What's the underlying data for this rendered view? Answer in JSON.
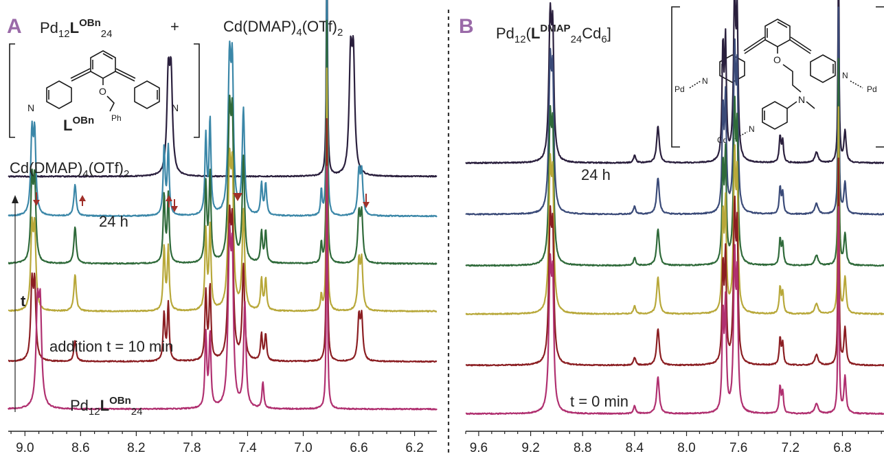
{
  "panels": {
    "A": {
      "letter": "A",
      "title_prefix": "Pd",
      "title_sub1": "12",
      "title_L": "L",
      "title_sup": "OBn",
      "title_sub2": "24",
      "plus": "+",
      "reagent_prefix": "Cd(DMAP)",
      "reagent_sub1": "4",
      "reagent_mid": "(OTf)",
      "reagent_sub2": "2",
      "ligand_L": "L",
      "ligand_sup": "OBn",
      "atoms": {
        "N_left": "N",
        "N_right": "N",
        "O": "O",
        "Ph": "Ph"
      },
      "axis_arrow_label": "t",
      "trace_labels": {
        "cd_prefix": "Cd(DMAP)",
        "cd_sub1": "4",
        "cd_mid": "(OTf)",
        "cd_sub2": "2",
        "time_24h": "24 h",
        "addition": "addition t = 10 min",
        "cage_prefix": "Pd",
        "cage_sub1": "12",
        "cage_L": "L",
        "cage_sup": "OBn",
        "cage_sub2": "24"
      }
    },
    "B": {
      "letter": "B",
      "title_prefix": "Pd",
      "title_sub1": "12",
      "title_open": "(",
      "title_L": "L",
      "title_sup": "DMAP",
      "title_sub2": "24",
      "title_cd": "Cd",
      "title_sub3": "6",
      "title_close": "]",
      "atoms": {
        "Pd_left": "Pd",
        "N_left": "N",
        "Pd_right": "Pd",
        "N_right": "N",
        "O": "O",
        "N_amine": "N",
        "Cd": "Cd",
        "N_bottom": "N"
      },
      "trace_labels": {
        "time_24h": "24 h",
        "time_0": "t = 0 min"
      }
    }
  },
  "colors": {
    "dark": "#2a1f3d",
    "blue": "#3b87a8",
    "navy": "#3a4a78",
    "green": "#2f6a3a",
    "olive": "#b8a83a",
    "red": "#8b1e22",
    "magenta": "#b03070",
    "panel_letter": "#9a6aa8",
    "arrow": "#a0302a"
  },
  "chart_data": [
    {
      "type": "line",
      "panel": "A",
      "xlabel": "",
      "ylabel": "",
      "xlim": [
        9.12,
        6.04
      ],
      "x_ticks": [
        9.0,
        8.6,
        8.2,
        7.8,
        7.4,
        7.0,
        6.6,
        6.2
      ],
      "x_tick_labels": [
        "9.0",
        "8.6",
        "8.2",
        "7.8",
        "7.4",
        "7.0",
        "6.6",
        "6.2"
      ],
      "series": [
        {
          "color": "#2a1f3d",
          "baseline": 0.93,
          "peaks": [
            [
              7.97,
              0.36,
              0.012
            ],
            [
              7.95,
              0.36,
              0.012
            ],
            [
              6.66,
              0.42,
              0.012
            ],
            [
              6.64,
              0.42,
              0.012
            ],
            [
              6.83,
              0.94,
              0.005
            ]
          ]
        },
        {
          "color": "#3b87a8",
          "baseline": 0.78,
          "peaks": [
            [
              8.95,
              0.3,
              0.01
            ],
            [
              8.93,
              0.3,
              0.01
            ],
            [
              8.64,
              0.12,
              0.01
            ],
            [
              8.0,
              0.26,
              0.008
            ],
            [
              7.97,
              0.26,
              0.008
            ],
            [
              7.7,
              0.3,
              0.008
            ],
            [
              7.67,
              0.36,
              0.008
            ],
            [
              7.53,
              0.56,
              0.012
            ],
            [
              7.51,
              0.5,
              0.01
            ],
            [
              7.43,
              0.4,
              0.01
            ],
            [
              7.3,
              0.12,
              0.008
            ],
            [
              7.27,
              0.12,
              0.008
            ],
            [
              6.87,
              0.1,
              0.006
            ],
            [
              6.83,
              0.94,
              0.005
            ],
            [
              6.6,
              0.16,
              0.01
            ],
            [
              6.58,
              0.16,
              0.01
            ]
          ]
        },
        {
          "color": "#2f6a3a",
          "baseline": 0.6,
          "peaks": [
            [
              8.95,
              0.3,
              0.01
            ],
            [
              8.93,
              0.3,
              0.01
            ],
            [
              8.64,
              0.14,
              0.01
            ],
            [
              8.0,
              0.26,
              0.008
            ],
            [
              7.97,
              0.26,
              0.008
            ],
            [
              7.7,
              0.3,
              0.008
            ],
            [
              7.67,
              0.34,
              0.008
            ],
            [
              7.53,
              0.54,
              0.012
            ],
            [
              7.51,
              0.48,
              0.01
            ],
            [
              7.43,
              0.4,
              0.01
            ],
            [
              7.3,
              0.12,
              0.008
            ],
            [
              7.27,
              0.12,
              0.008
            ],
            [
              6.87,
              0.08,
              0.006
            ],
            [
              6.83,
              0.94,
              0.005
            ],
            [
              6.6,
              0.18,
              0.01
            ],
            [
              6.58,
              0.18,
              0.01
            ]
          ]
        },
        {
          "color": "#b8a83a",
          "baseline": 0.42,
          "peaks": [
            [
              8.95,
              0.3,
              0.01
            ],
            [
              8.93,
              0.3,
              0.01
            ],
            [
              8.64,
              0.14,
              0.01
            ],
            [
              8.0,
              0.24,
              0.008
            ],
            [
              7.97,
              0.24,
              0.008
            ],
            [
              7.7,
              0.3,
              0.008
            ],
            [
              7.67,
              0.32,
              0.008
            ],
            [
              7.53,
              0.52,
              0.012
            ],
            [
              7.51,
              0.46,
              0.01
            ],
            [
              7.43,
              0.38,
              0.01
            ],
            [
              7.3,
              0.12,
              0.008
            ],
            [
              7.27,
              0.12,
              0.008
            ],
            [
              6.87,
              0.06,
              0.006
            ],
            [
              6.83,
              0.94,
              0.005
            ],
            [
              6.6,
              0.18,
              0.01
            ],
            [
              6.58,
              0.18,
              0.01
            ]
          ]
        },
        {
          "color": "#8b1e22",
          "baseline": 0.23,
          "peaks": [
            [
              8.95,
              0.28,
              0.01
            ],
            [
              8.93,
              0.28,
              0.01
            ],
            [
              8.64,
              0.08,
              0.01
            ],
            [
              8.0,
              0.18,
              0.008
            ],
            [
              7.97,
              0.22,
              0.008
            ],
            [
              7.7,
              0.26,
              0.008
            ],
            [
              7.67,
              0.28,
              0.008
            ],
            [
              7.53,
              0.5,
              0.012
            ],
            [
              7.51,
              0.44,
              0.01
            ],
            [
              7.43,
              0.36,
              0.01
            ],
            [
              7.3,
              0.1,
              0.008
            ],
            [
              7.27,
              0.1,
              0.008
            ],
            [
              6.83,
              0.94,
              0.005
            ],
            [
              6.6,
              0.16,
              0.01
            ],
            [
              6.58,
              0.16,
              0.01
            ]
          ]
        },
        {
          "color": "#b03070",
          "baseline": 0.05,
          "peaks": [
            [
              8.91,
              0.36,
              0.012
            ],
            [
              8.89,
              0.36,
              0.012
            ],
            [
              7.7,
              0.28,
              0.008
            ],
            [
              7.67,
              0.28,
              0.008
            ],
            [
              7.53,
              0.6,
              0.012
            ],
            [
              7.51,
              0.5,
              0.01
            ],
            [
              7.42,
              0.4,
              0.01
            ],
            [
              7.29,
              0.1,
              0.008
            ],
            [
              6.83,
              0.94,
              0.005
            ]
          ]
        }
      ]
    },
    {
      "type": "line",
      "panel": "B",
      "xlabel": "",
      "ylabel": "",
      "xlim": [
        9.7,
        6.48
      ],
      "x_ticks": [
        9.6,
        9.2,
        8.8,
        8.4,
        8.0,
        7.6,
        7.2,
        6.8
      ],
      "x_tick_labels": [
        "9.6",
        "9.2",
        "8.8",
        "8.4",
        "8.0",
        "7.6",
        "7.2",
        "6.8"
      ],
      "series": [
        {
          "color": "#2a1f3d",
          "baseline": 0.91,
          "peaks": [
            [
              9.05,
              0.52,
              0.012
            ],
            [
              9.03,
              0.44,
              0.01
            ],
            [
              8.4,
              0.03,
              0.01
            ],
            [
              8.22,
              0.14,
              0.012
            ],
            [
              7.72,
              0.42,
              0.008
            ],
            [
              7.7,
              0.44,
              0.008
            ],
            [
              7.63,
              0.62,
              0.01
            ],
            [
              7.61,
              0.5,
              0.008
            ],
            [
              7.28,
              0.1,
              0.008
            ],
            [
              7.26,
              0.08,
              0.008
            ],
            [
              7.0,
              0.04,
              0.015
            ],
            [
              6.83,
              0.8,
              0.005
            ],
            [
              6.78,
              0.12,
              0.01
            ]
          ]
        },
        {
          "color": "#3a4a78",
          "baseline": 0.73,
          "peaks": [
            [
              9.05,
              0.54,
              0.012
            ],
            [
              9.03,
              0.46,
              0.01
            ],
            [
              8.4,
              0.03,
              0.01
            ],
            [
              8.22,
              0.14,
              0.012
            ],
            [
              7.72,
              0.38,
              0.008
            ],
            [
              7.7,
              0.42,
              0.008
            ],
            [
              7.63,
              0.6,
              0.01
            ],
            [
              7.61,
              0.48,
              0.008
            ],
            [
              7.28,
              0.1,
              0.008
            ],
            [
              7.26,
              0.08,
              0.008
            ],
            [
              7.0,
              0.04,
              0.015
            ],
            [
              6.83,
              0.8,
              0.005
            ],
            [
              6.78,
              0.12,
              0.01
            ]
          ]
        },
        {
          "color": "#2f6a3a",
          "baseline": 0.55,
          "peaks": [
            [
              9.05,
              0.52,
              0.012
            ],
            [
              9.03,
              0.44,
              0.01
            ],
            [
              8.4,
              0.03,
              0.01
            ],
            [
              8.22,
              0.14,
              0.012
            ],
            [
              7.72,
              0.36,
              0.008
            ],
            [
              7.7,
              0.4,
              0.008
            ],
            [
              7.63,
              0.58,
              0.01
            ],
            [
              7.61,
              0.46,
              0.008
            ],
            [
              7.28,
              0.1,
              0.008
            ],
            [
              7.26,
              0.08,
              0.008
            ],
            [
              7.0,
              0.04,
              0.015
            ],
            [
              6.83,
              0.8,
              0.005
            ],
            [
              6.78,
              0.12,
              0.01
            ]
          ]
        },
        {
          "color": "#b8a83a",
          "baseline": 0.38,
          "peaks": [
            [
              9.05,
              0.52,
              0.012
            ],
            [
              9.03,
              0.44,
              0.01
            ],
            [
              8.4,
              0.03,
              0.01
            ],
            [
              8.22,
              0.14,
              0.012
            ],
            [
              7.72,
              0.36,
              0.008
            ],
            [
              7.7,
              0.4,
              0.008
            ],
            [
              7.63,
              0.58,
              0.01
            ],
            [
              7.61,
              0.46,
              0.008
            ],
            [
              7.28,
              0.1,
              0.008
            ],
            [
              7.26,
              0.08,
              0.008
            ],
            [
              7.0,
              0.04,
              0.015
            ],
            [
              6.83,
              0.8,
              0.005
            ],
            [
              6.78,
              0.14,
              0.01
            ]
          ]
        },
        {
          "color": "#8b1e22",
          "baseline": 0.2,
          "peaks": [
            [
              9.05,
              0.52,
              0.012
            ],
            [
              9.03,
              0.44,
              0.01
            ],
            [
              8.4,
              0.03,
              0.01
            ],
            [
              8.22,
              0.14,
              0.012
            ],
            [
              7.72,
              0.36,
              0.008
            ],
            [
              7.7,
              0.4,
              0.008
            ],
            [
              7.63,
              0.58,
              0.01
            ],
            [
              7.61,
              0.46,
              0.008
            ],
            [
              7.28,
              0.1,
              0.008
            ],
            [
              7.26,
              0.08,
              0.008
            ],
            [
              7.0,
              0.04,
              0.015
            ],
            [
              6.83,
              0.8,
              0.005
            ],
            [
              6.78,
              0.14,
              0.01
            ]
          ]
        },
        {
          "color": "#b03070",
          "baseline": 0.03,
          "peaks": [
            [
              9.05,
              0.52,
              0.012
            ],
            [
              9.03,
              0.44,
              0.01
            ],
            [
              8.4,
              0.03,
              0.01
            ],
            [
              8.22,
              0.14,
              0.012
            ],
            [
              7.72,
              0.36,
              0.008
            ],
            [
              7.7,
              0.4,
              0.008
            ],
            [
              7.63,
              0.58,
              0.01
            ],
            [
              7.61,
              0.46,
              0.008
            ],
            [
              7.28,
              0.1,
              0.008
            ],
            [
              7.26,
              0.08,
              0.008
            ],
            [
              7.0,
              0.04,
              0.015
            ],
            [
              6.83,
              0.8,
              0.005
            ],
            [
              6.78,
              0.14,
              0.01
            ]
          ]
        }
      ]
    }
  ]
}
